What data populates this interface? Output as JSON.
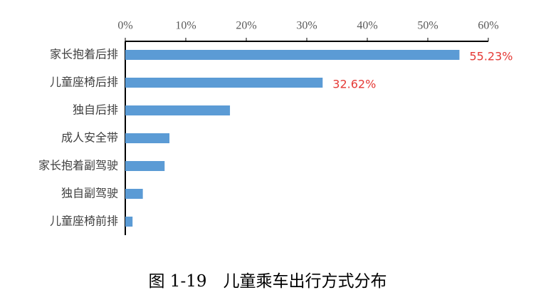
{
  "chart_data": {
    "type": "hbar",
    "caption": "图 1-19　儿童乘车出行方式分布",
    "categories": [
      "家长抱着后排",
      "儿童座椅后排",
      "独自后排",
      "成人安全带",
      "家长抱着副驾驶",
      "独自副驾驶",
      "儿童座椅前排"
    ],
    "values": [
      55.23,
      32.62,
      17.3,
      7.3,
      6.5,
      2.9,
      1.2
    ],
    "value_labels": [
      "55.23%",
      "32.62%",
      null,
      null,
      null,
      null,
      null
    ],
    "color": "#5b9bd5",
    "label_color": "#e53935",
    "xlim": [
      0,
      60
    ],
    "xticks": [
      {
        "value": 0,
        "label": "0%"
      },
      {
        "value": 10,
        "label": "10%"
      },
      {
        "value": 20,
        "label": "20%"
      },
      {
        "value": 30,
        "label": "30%"
      },
      {
        "value": 40,
        "label": "40%"
      },
      {
        "value": 50,
        "label": "50%"
      },
      {
        "value": 60,
        "label": "60%"
      }
    ],
    "grid": false
  }
}
